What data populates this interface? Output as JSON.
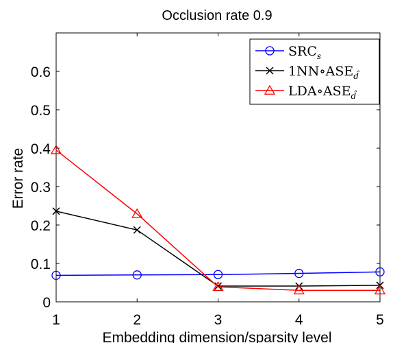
{
  "chart_data": {
    "type": "line",
    "title": "Occlusion rate 0.9",
    "xlabel": "Embedding dimension/sparsity level",
    "ylabel": "Error rate",
    "x": [
      1,
      2,
      3,
      4,
      5
    ],
    "xlim": [
      1,
      5
    ],
    "ylim": [
      0,
      0.7
    ],
    "xticks": [
      1,
      2,
      3,
      4,
      5
    ],
    "yticks": [
      0,
      0.1,
      0.2,
      0.3,
      0.4,
      0.5,
      0.6
    ],
    "xtick_labels": [
      "1",
      "2",
      "3",
      "4",
      "5"
    ],
    "ytick_labels": [
      "0",
      "0.1",
      "0.2",
      "0.3",
      "0.4",
      "0.5",
      "0.6"
    ],
    "grid": false,
    "legend_position": "top-right",
    "series": [
      {
        "name": "SRC",
        "name_subscript": "s",
        "color": "#0000ff",
        "marker": "circle",
        "values": [
          0.069,
          0.07,
          0.071,
          0.074,
          0.078
        ]
      },
      {
        "name": "1NN∘ASE",
        "name_subscript": "d̂",
        "color": "#000000",
        "marker": "x",
        "values": [
          0.236,
          0.187,
          0.041,
          0.041,
          0.043
        ]
      },
      {
        "name": "LDA∘ASE",
        "name_subscript": "d̂",
        "color": "#ff0000",
        "marker": "triangle",
        "values": [
          0.395,
          0.229,
          0.039,
          0.03,
          0.03
        ]
      }
    ]
  }
}
